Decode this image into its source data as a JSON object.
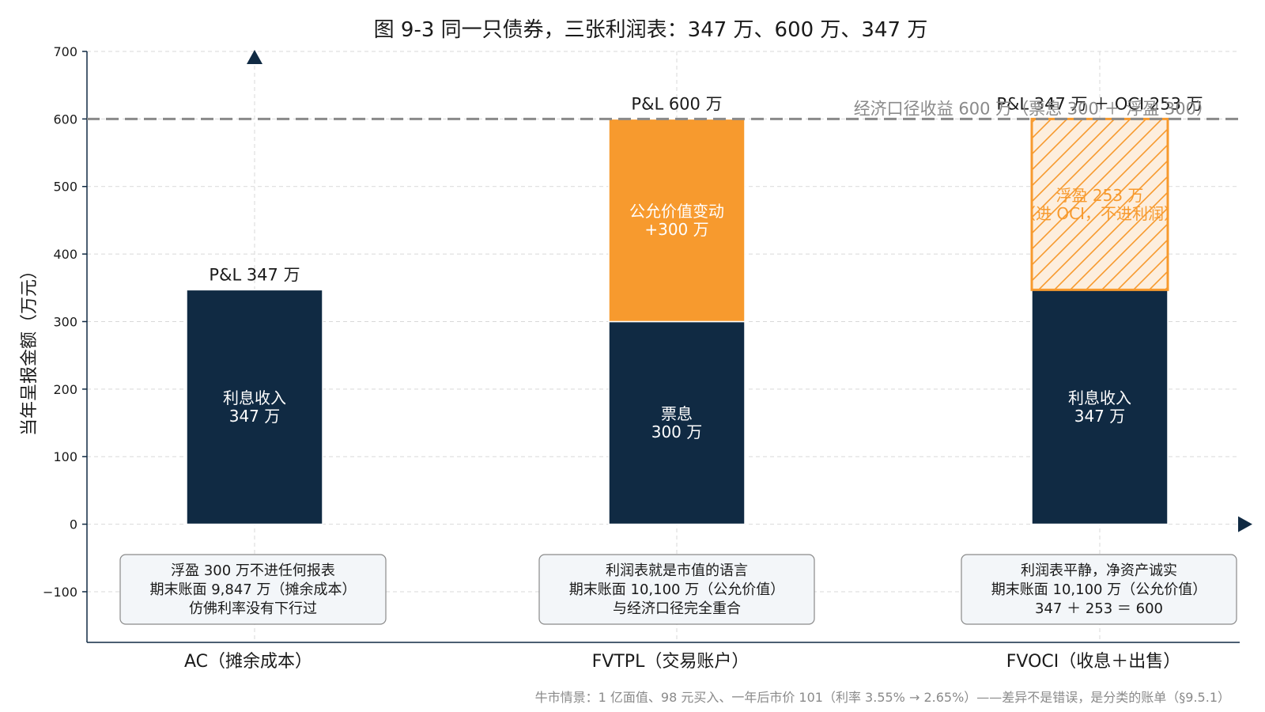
{
  "chart_data": {
    "type": "bar",
    "stacked": true,
    "title": "图 9-3 同一只债券，三张利润表：347 万、600 万、347 万",
    "ylabel": "当年呈报金额（万元）",
    "xlabel": "",
    "ylim": [
      -175,
      700
    ],
    "yticks": [
      -100,
      0,
      100,
      200,
      300,
      400,
      500,
      600,
      700
    ],
    "ytick_labels": [
      "−100",
      "0",
      "100",
      "200",
      "300",
      "400",
      "500",
      "600",
      "700"
    ],
    "grid": true,
    "categories": [
      "AC（摊余成本）",
      "FVTPL（交易账户）",
      "FVOCI（收息＋出售）"
    ],
    "bars": [
      {
        "category": "AC（摊余成本）",
        "total_label": "P&L 347 万",
        "segments": [
          {
            "value": 347,
            "base": 0,
            "color": "#102a43",
            "style": "solid",
            "label_lines": [
              "利息收入",
              "347 万"
            ],
            "label_color": "#ffffff"
          }
        ],
        "note_lines": [
          "浮盈 300 万不进任何报表",
          "期末账面 9,847 万（摊余成本）",
          "仿佛利率没有下行过"
        ]
      },
      {
        "category": "FVTPL（交易账户）",
        "total_label": "P&L 600 万",
        "segments": [
          {
            "value": 300,
            "base": 0,
            "color": "#102a43",
            "style": "solid",
            "label_lines": [
              "票息",
              "300 万"
            ],
            "label_color": "#ffffff"
          },
          {
            "value": 300,
            "base": 300,
            "color": "#f79a2e",
            "style": "solid",
            "label_lines": [
              "公允价值变动",
              "+300 万"
            ],
            "label_color": "#ffffff"
          }
        ],
        "note_lines": [
          "利润表就是市值的语言",
          "期末账面 10,100 万（公允价值）",
          "与经济口径完全重合"
        ]
      },
      {
        "category": "FVOCI（收息＋出售）",
        "total_label": "P&L 347 万 ＋ OCI 253 万",
        "segments": [
          {
            "value": 347,
            "base": 0,
            "color": "#102a43",
            "style": "solid",
            "label_lines": [
              "利息收入",
              "347 万"
            ],
            "label_color": "#ffffff"
          },
          {
            "value": 253,
            "base": 347,
            "color": "#f79a2e",
            "style": "hatched",
            "label_lines": [
              "浮盈 253 万",
              "（进 OCI，不进利润）"
            ],
            "label_color": "#f79a2e"
          }
        ],
        "note_lines": [
          "利润表平静，净资产诚实",
          "期末账面 10,100 万（公允价值）",
          "347 ＋ 253 ＝ 600"
        ]
      }
    ],
    "reference_line": {
      "value": 600,
      "label": "经济口径收益 600 万（票息 300 ＋ 浮盈 300）",
      "color": "#8a8a8a"
    },
    "footnote": "牛市情景：1 亿面值、98 元买入、一年后市价 101（利率 3.55% → 2.65%）——差异不是错误，是分类的账单（§9.5.1）",
    "colors": {
      "navy": "#102a43",
      "orange": "#f79a2e",
      "hatch_bg": "#fdeedd",
      "grid": "#d9d9d9",
      "note_bg": "#f3f6f9",
      "note_border": "#8a8a8a"
    }
  }
}
